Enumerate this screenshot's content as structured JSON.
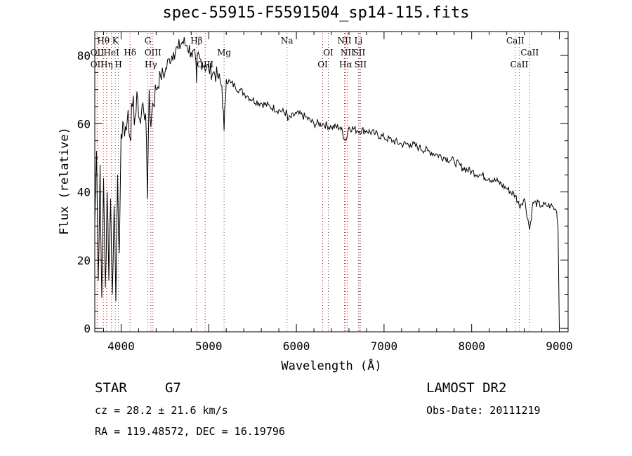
{
  "chart_data": {
    "type": "line",
    "title": "spec-55915-F5591504_sp14-115.fits",
    "xlabel": "Wavelength (Å)",
    "ylabel": "Flux (relative)",
    "xlim": [
      3700,
      9100
    ],
    "ylim": [
      -1,
      87
    ],
    "xticks": [
      4000,
      5000,
      6000,
      7000,
      8000,
      9000
    ],
    "yticks": [
      0,
      20,
      40,
      60,
      80
    ],
    "grid": false,
    "series": [
      {
        "x": [
          3700,
          3720,
          3740,
          3760,
          3780,
          3800,
          3820,
          3840,
          3860,
          3880,
          3900,
          3920,
          3940,
          3960,
          3980,
          4000,
          4030,
          4060,
          4080,
          4100,
          4130,
          4160,
          4190,
          4220,
          4250,
          4280,
          4300,
          4320,
          4340,
          4360,
          4400,
          4450,
          4500,
          4550,
          4600,
          4650,
          4700,
          4750,
          4800,
          4850,
          4861,
          4870,
          4900,
          4950,
          5000,
          5050,
          5100,
          5150,
          5175,
          5200,
          5250,
          5300,
          5350,
          5400,
          5450,
          5500,
          5600,
          5700,
          5800,
          5893,
          5900,
          6000,
          6100,
          6200,
          6300,
          6400,
          6500,
          6563,
          6600,
          6700,
          6800,
          6900,
          7000,
          7100,
          7200,
          7300,
          7400,
          7500,
          7600,
          7700,
          7800,
          7900,
          8000,
          8100,
          8200,
          8300,
          8400,
          8498,
          8542,
          8600,
          8662,
          8700,
          8800,
          8850,
          8900,
          8950,
          8970,
          8985,
          9000
        ],
        "y": [
          31,
          52,
          14,
          48,
          9,
          44,
          12,
          40,
          14,
          38,
          10,
          36,
          8,
          45,
          22,
          57,
          60,
          58,
          64,
          56,
          65,
          62,
          67,
          60,
          66,
          63,
          38,
          70,
          59,
          66,
          70,
          74,
          75,
          79,
          81,
          82,
          84,
          83,
          81,
          79,
          72,
          80,
          79,
          77,
          76,
          75,
          74,
          71,
          58,
          73,
          72,
          71,
          70,
          69,
          68,
          67,
          66,
          65,
          64,
          63,
          61,
          63,
          62,
          60,
          60,
          59,
          59,
          55,
          59,
          58,
          58,
          57,
          56,
          55,
          54,
          54,
          53,
          52,
          51,
          50,
          49,
          47,
          46,
          45,
          44,
          43,
          41,
          39,
          36,
          38,
          29,
          37,
          36,
          36,
          36,
          35,
          34,
          30,
          0
        ]
      }
    ],
    "annotations": {
      "lines": [
        {
          "label": "Hθ",
          "x": 3798,
          "row": 1
        },
        {
          "label": "OII",
          "x": 3727,
          "row": 2
        },
        {
          "label": "OII",
          "x": 3727,
          "row": 3
        },
        {
          "label": "K",
          "x": 3934,
          "row": 1
        },
        {
          "label": "HeI",
          "x": 3889,
          "row": 2
        },
        {
          "label": "Hη",
          "x": 3835,
          "row": 3
        },
        {
          "label": "H",
          "x": 3969,
          "row": 3
        },
        {
          "label": "Hδ",
          "x": 4102,
          "row": 2
        },
        {
          "label": "G",
          "x": 4305,
          "row": 1
        },
        {
          "label": "OIII",
          "x": 4363,
          "row": 2
        },
        {
          "label": "Hγ",
          "x": 4340,
          "row": 3
        },
        {
          "label": "Hβ",
          "x": 4861,
          "row": 1
        },
        {
          "label": "OIII",
          "x": 4959,
          "row": 3
        },
        {
          "label": "Mg",
          "x": 5175,
          "row": 2
        },
        {
          "label": "Na",
          "x": 5893,
          "row": 1
        },
        {
          "label": "OI",
          "x": 6300,
          "row": 3
        },
        {
          "label": "OI",
          "x": 6364,
          "row": 2
        },
        {
          "label": "NII",
          "x": 6548,
          "row": 1
        },
        {
          "label": "Li",
          "x": 6708,
          "row": 1
        },
        {
          "label": "NII",
          "x": 6583,
          "row": 2
        },
        {
          "label": "SII",
          "x": 6716,
          "row": 2
        },
        {
          "label": "Hα",
          "x": 6563,
          "row": 3
        },
        {
          "label": "SII",
          "x": 6731,
          "row": 3
        },
        {
          "label": "CaII",
          "x": 8498,
          "row": 1
        },
        {
          "label": "CaII",
          "x": 8662,
          "row": 2
        },
        {
          "label": "CaII",
          "x": 8542,
          "row": 3
        }
      ]
    }
  },
  "info": {
    "object_type": "STAR",
    "object_class": "G7",
    "survey": "LAMOST DR2",
    "redshift": "cz = 28.2 ± 21.6 km/s",
    "obs_date": "Obs-Date: 20111219",
    "coords": "RA = 119.48572, DEC =  16.19796"
  },
  "colors": {
    "emission_marker": "#cc0000",
    "absorption_marker": "#555555",
    "trace": "#000000"
  }
}
